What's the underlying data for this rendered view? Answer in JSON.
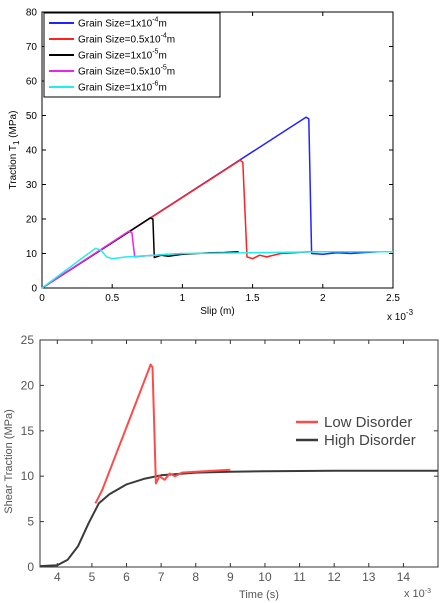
{
  "chart_data": [
    {
      "type": "line",
      "xlabel": "Slip (m)",
      "ylabel_main": "Traction T",
      "ylabel_sub": "1",
      "ylabel_unit": " (MPa)",
      "x_multiplier": "x 10",
      "x_multiplier_exp": "-3",
      "xlim": [
        0,
        2.5
      ],
      "ylim": [
        0,
        80
      ],
      "xticks": [
        "0",
        "0.5",
        "1",
        "1.5",
        "2",
        "2.5"
      ],
      "yticks": [
        "0",
        "10",
        "20",
        "30",
        "40",
        "50",
        "60",
        "70",
        "80"
      ],
      "grid": false,
      "legend_position": "top-left",
      "series": [
        {
          "name_base": "Grain Size=1x10",
          "name_exp": "-4",
          "name_unit": "m",
          "color": "#2323ff",
          "x": [
            0,
            1.88,
            1.9,
            1.92,
            2.0,
            2.1,
            2.2,
            2.3,
            2.4,
            2.5
          ],
          "y": [
            0,
            49.5,
            49.0,
            10.0,
            9.8,
            10.2,
            10.0,
            10.3,
            10.5,
            10.5
          ]
        },
        {
          "name_base": "Grain Size=0.5x10",
          "name_exp": "-4",
          "name_unit": "m",
          "color": "#ff2020",
          "x": [
            0,
            1.41,
            1.43,
            1.46,
            1.5,
            1.55,
            1.6,
            1.7,
            1.8,
            1.9,
            2.0
          ],
          "y": [
            0,
            37.0,
            36.5,
            9.0,
            8.5,
            9.5,
            9.0,
            10.0,
            10.2,
            10.5,
            10.5
          ]
        },
        {
          "name_base": "Grain Size=1x10",
          "name_exp": "-5",
          "name_unit": "m",
          "color": "#000000",
          "x": [
            0,
            0.77,
            0.79,
            0.8,
            0.85,
            0.9,
            1.0,
            1.1,
            1.2,
            1.3,
            1.4
          ],
          "y": [
            0,
            20.3,
            20.0,
            8.8,
            9.5,
            9.2,
            9.8,
            10.0,
            10.2,
            10.3,
            10.5
          ]
        },
        {
          "name_base": "Grain Size=0.5x10",
          "name_exp": "-5",
          "name_unit": "m",
          "color": "#ee22ee",
          "x": [
            0,
            0.62,
            0.64,
            0.66,
            0.7,
            0.8,
            0.9,
            1.0
          ],
          "y": [
            0,
            16.5,
            16.0,
            9.0,
            9.2,
            9.5,
            9.8,
            10.0
          ]
        },
        {
          "name_base": "Grain Size=1x10",
          "name_exp": "-6",
          "name_unit": "m",
          "color": "#22eeee",
          "x": [
            0,
            0.38,
            0.42,
            0.46,
            0.5,
            0.6,
            0.8,
            1.0,
            1.5,
            2.0,
            2.5
          ],
          "y": [
            0,
            11.5,
            11.0,
            9.0,
            8.5,
            9.0,
            9.5,
            10.0,
            10.2,
            10.5,
            10.5
          ]
        }
      ]
    },
    {
      "type": "line",
      "xlabel": "Time (s)",
      "ylabel": "Shear Traction (MPa)",
      "x_multiplier": "x 10",
      "x_multiplier_exp": "-3",
      "xlim": [
        3.5,
        15
      ],
      "ylim": [
        0,
        25
      ],
      "xticks": [
        "4",
        "5",
        "6",
        "7",
        "8",
        "9",
        "10",
        "11",
        "12",
        "13",
        "14"
      ],
      "yticks": [
        "0",
        "5",
        "10",
        "15",
        "20",
        "25"
      ],
      "grid": false,
      "legend_position": "right",
      "series": [
        {
          "name": "Low Disorder",
          "color": "#ff4a4a",
          "x": [
            5.1,
            5.3,
            6.7,
            6.75,
            6.85,
            6.95,
            7.1,
            7.25,
            7.4,
            7.6,
            8.0,
            9.0
          ],
          "y": [
            7.0,
            8.5,
            22.3,
            22.0,
            9.2,
            10.0,
            9.6,
            10.3,
            10.0,
            10.4,
            10.5,
            10.7
          ]
        },
        {
          "name": "High Disorder",
          "color": "#3a3a3a",
          "x": [
            3.5,
            4.0,
            4.3,
            4.6,
            4.9,
            5.2,
            5.5,
            6.0,
            6.5,
            7.0,
            8.0,
            9.0,
            10.0,
            12.0,
            15.0
          ],
          "y": [
            0.1,
            0.2,
            0.8,
            2.3,
            4.8,
            7.0,
            8.0,
            9.1,
            9.7,
            10.1,
            10.4,
            10.5,
            10.55,
            10.6,
            10.6
          ]
        }
      ]
    }
  ]
}
